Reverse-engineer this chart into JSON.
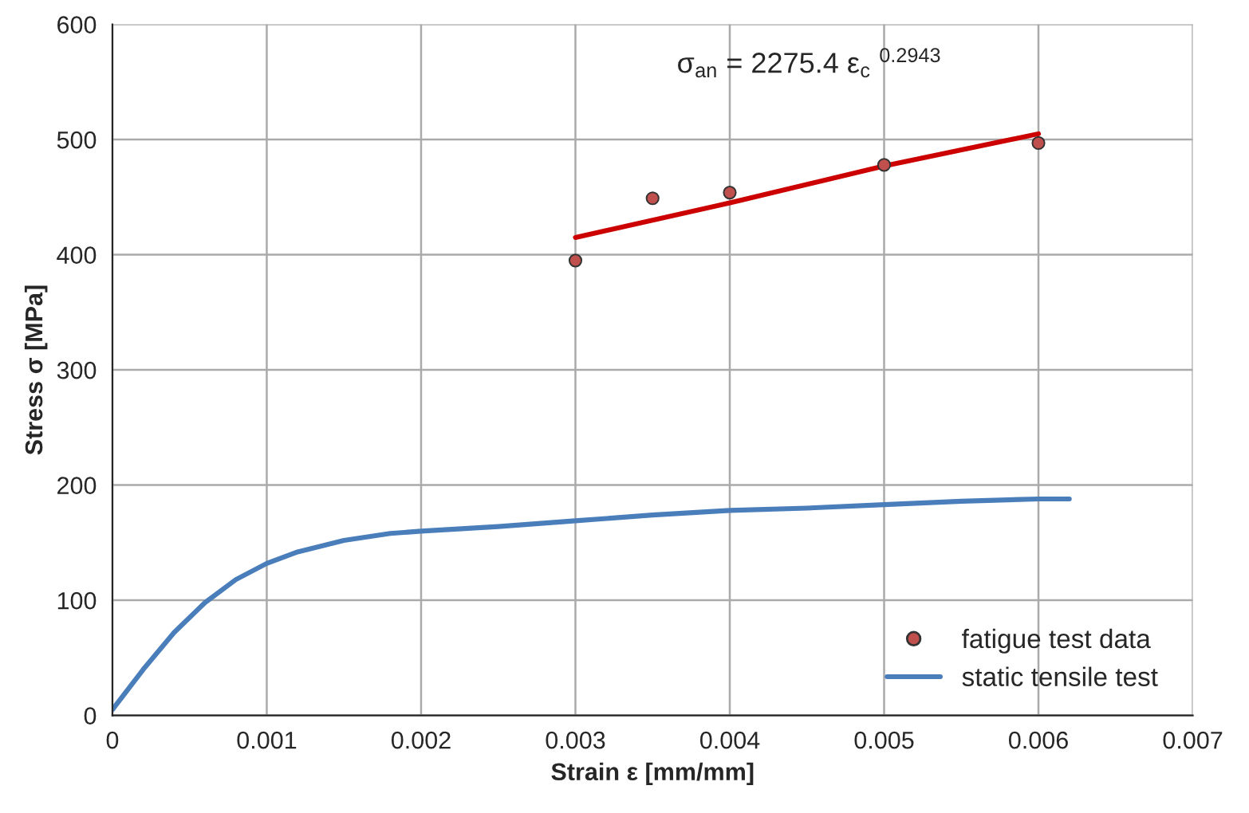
{
  "chart_data": {
    "type": "line",
    "xlabel": "Strain ε [mm/mm]",
    "ylabel": "Stress σ [MPa]",
    "annotations": [
      "σ$_{an}$ = 2275.4 ε$_{c}$ $^{0.2943}$"
    ],
    "series": [
      {
        "name": "fatigue test data",
        "type": "scatter",
        "marker": "circle",
        "color": "#c0504d",
        "x": [
          0.003,
          0.0035,
          0.004,
          0.005,
          0.006
        ],
        "values": [
          395,
          449,
          454,
          478,
          497
        ]
      },
      {
        "color": "#cc0000",
        "x": [
          0.003,
          0.004,
          0.005,
          0.006
        ],
        "values": [
          415,
          445,
          477,
          505
        ]
      },
      {
        "name": "static tensile test",
        "color": "#4a7ebb",
        "x": [
          0,
          0.0002,
          0.0004,
          0.0006,
          0.0008,
          0.001,
          0.0012,
          0.0015,
          0.0018,
          0.002,
          0.0025,
          0.003,
          0.0035,
          0.004,
          0.0045,
          0.005,
          0.0055,
          0.006,
          0.0062
        ],
        "values": [
          5,
          40,
          72,
          98,
          118,
          132,
          142,
          152,
          158,
          160,
          164,
          169,
          174,
          178,
          180,
          183,
          186,
          188,
          188
        ]
      }
    ],
    "xlim": [
      0,
      0.007
    ],
    "xticks": [
      0,
      0.001,
      0.002,
      0.003,
      0.004,
      0.005,
      0.006,
      0.007
    ],
    "ylim": [
      0,
      600
    ],
    "yticks": [
      0,
      100,
      200,
      300,
      400,
      500,
      600
    ],
    "grid": true,
    "legend": "bottom right"
  }
}
